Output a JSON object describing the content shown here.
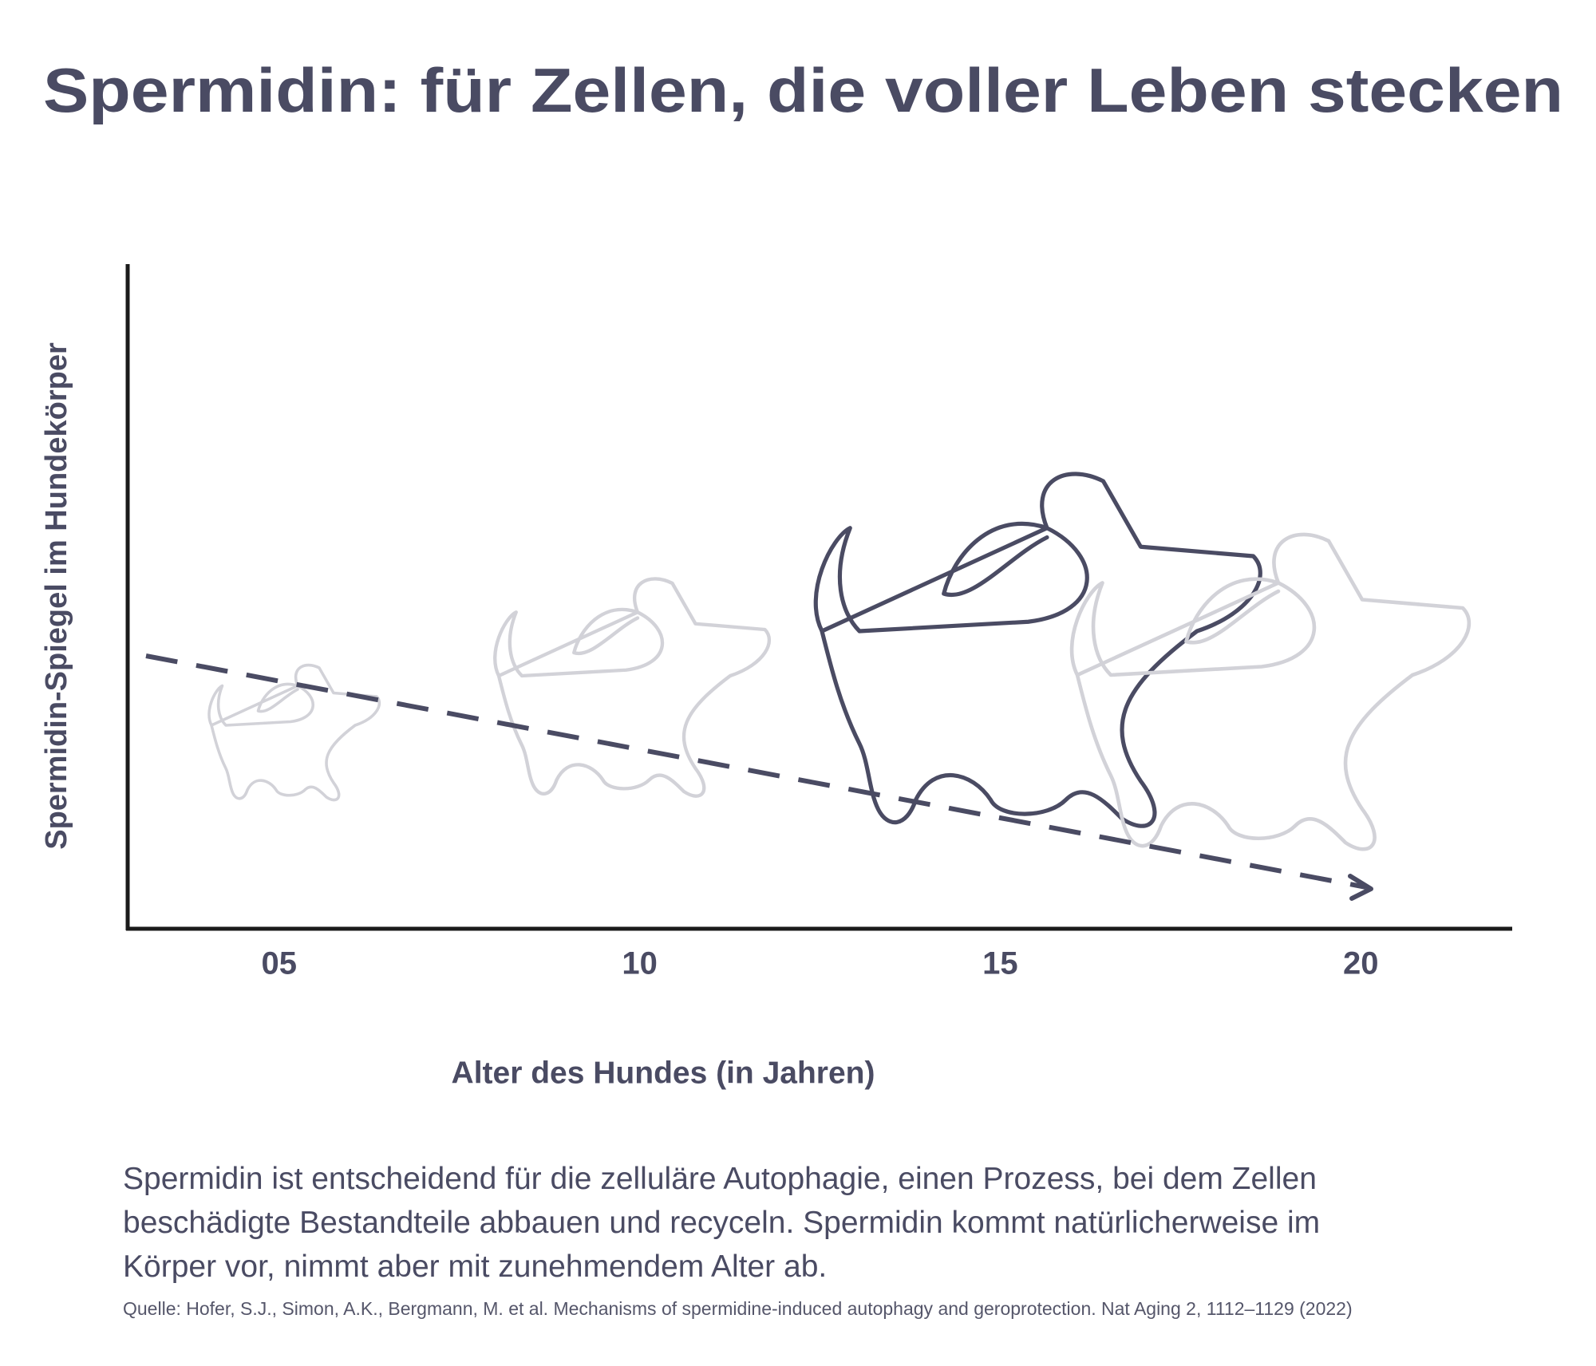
{
  "chart_data": {
    "type": "line",
    "title": "Spermidin: für Zellen, die voller Leben stecken",
    "x_label": "Alter des Hundes (in Jahren)",
    "y_label": "Spermidin-Spiegel im Hundekörper",
    "xlim": [
      2.9,
      22.1
    ],
    "xticks": [
      {
        "value": 5,
        "label": "05"
      },
      10,
      15,
      20
    ],
    "color": "#4a4b63",
    "description": [
      "Spermidin ist entscheidend für die zelluläre Autophagie, einen Prozess, bei dem Zellen",
      "beschädigte Bestandteile abbauen und recyceln. Spermidin kommt natürlicherweise im",
      "Körper vor, nimmt aber mit zunehmendem Alter ab."
    ],
    "source": "Quelle: Hofer, S.J., Simon, A.K., Bergmann, M. et al. Mechanisms of spermidine-induced autophagy and geroprotection. Nat Aging 2, 1112–1129 (2022)"
  }
}
